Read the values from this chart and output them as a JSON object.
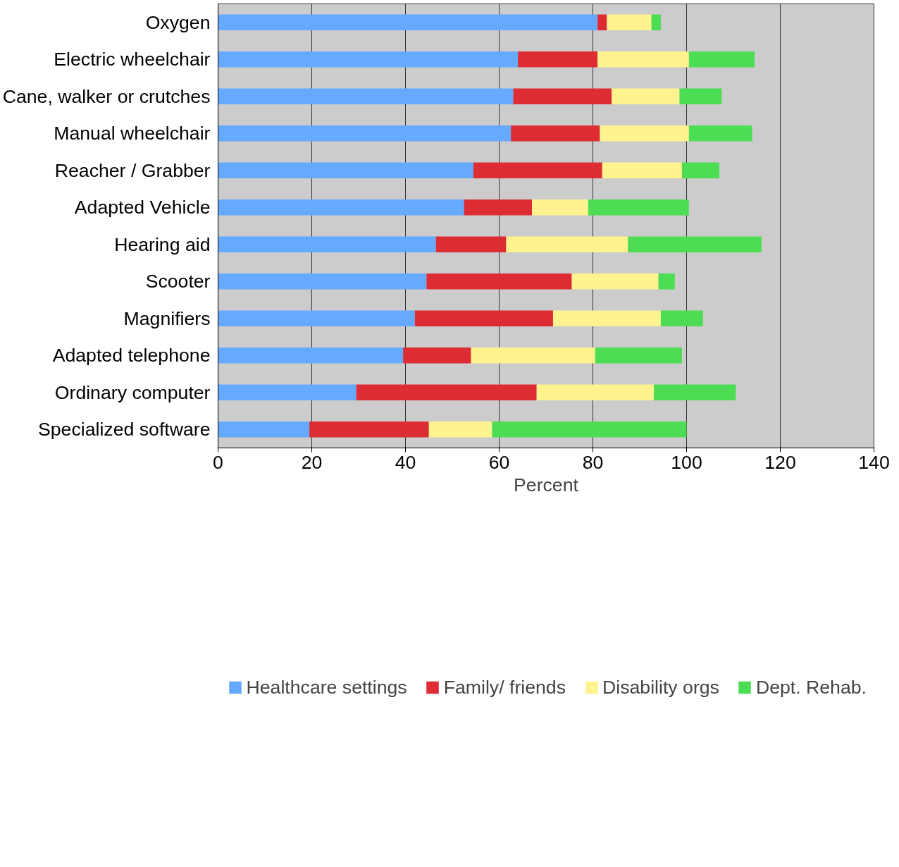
{
  "chart_data": {
    "type": "bar",
    "orientation": "horizontal",
    "stacked": true,
    "categories": [
      "Oxygen",
      "Electric wheelchair",
      "Cane, walker or crutches",
      "Manual wheelchair",
      "Reacher / Grabber",
      "Adapted Vehicle",
      "Hearing aid",
      "Scooter",
      "Magnifiers",
      "Adapted telephone",
      "Ordinary computer",
      "Specialized software"
    ],
    "series": [
      {
        "name": "Healthcare settings",
        "color": "#66aaff",
        "values": [
          81,
          64,
          63,
          62.5,
          54.5,
          52.5,
          46.5,
          44.5,
          42,
          39.5,
          29.5,
          19.5
        ]
      },
      {
        "name": "Family/ friends",
        "color": "#dd2c34",
        "values": [
          2,
          17,
          21,
          19,
          27.5,
          14.5,
          15,
          31,
          29.5,
          14.5,
          38.5,
          25.5
        ]
      },
      {
        "name": "Disability orgs",
        "color": "#fff38f",
        "values": [
          9.5,
          19.5,
          14.5,
          19,
          17,
          12,
          26,
          18.5,
          23,
          26.5,
          25,
          13.5
        ]
      },
      {
        "name": "Dept. Rehab.",
        "color": "#4ddd55",
        "values": [
          2,
          14,
          9,
          13.5,
          8,
          21.5,
          28.5,
          3.5,
          9,
          18.5,
          17.5,
          41.5
        ]
      }
    ],
    "xlabel": "Percent",
    "xlim": [
      0,
      140
    ],
    "xticks": [
      0,
      20,
      40,
      60,
      80,
      100,
      120,
      140
    ],
    "grid": "x",
    "legend": "bottom"
  }
}
